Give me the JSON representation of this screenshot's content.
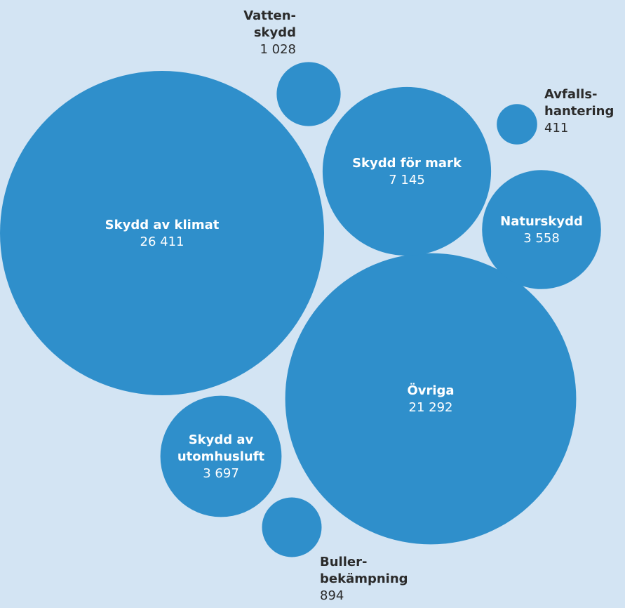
{
  "chart_data": {
    "type": "bubble",
    "title": "",
    "bubble_color": "#2f8fcb",
    "background_color": "#d3e4f3",
    "label_color_inside": "#ffffff",
    "label_color_outside": "#2b2b2b",
    "bubbles": [
      {
        "id": "skydd-av-klimat",
        "name_lines": [
          "Skydd av klimat"
        ],
        "value": 26411,
        "value_label": "26 411",
        "label_position": "inside"
      },
      {
        "id": "ovriga",
        "name_lines": [
          "Övriga"
        ],
        "value": 21292,
        "value_label": "21 292",
        "label_position": "inside"
      },
      {
        "id": "skydd-for-mark",
        "name_lines": [
          "Skydd för mark"
        ],
        "value": 7145,
        "value_label": "7 145",
        "label_position": "inside"
      },
      {
        "id": "skydd-av-utomhusluft",
        "name_lines": [
          "Skydd av",
          "utomhusluft"
        ],
        "value": 3697,
        "value_label": "3 697",
        "label_position": "inside"
      },
      {
        "id": "naturskydd",
        "name_lines": [
          "Naturskydd"
        ],
        "value": 3558,
        "value_label": "3 558",
        "label_position": "inside"
      },
      {
        "id": "vattenskydd",
        "name_lines": [
          "Vatten-",
          "skydd"
        ],
        "value": 1028,
        "value_label": "1 028",
        "label_position": "above"
      },
      {
        "id": "bullerbekampning",
        "name_lines": [
          "Buller-",
          "bekämpning"
        ],
        "value": 894,
        "value_label": "894",
        "label_position": "below-right"
      },
      {
        "id": "avfallshantering",
        "name_lines": [
          "Avfalls-",
          "hantering"
        ],
        "value": 411,
        "value_label": "411",
        "label_position": "right"
      }
    ]
  }
}
